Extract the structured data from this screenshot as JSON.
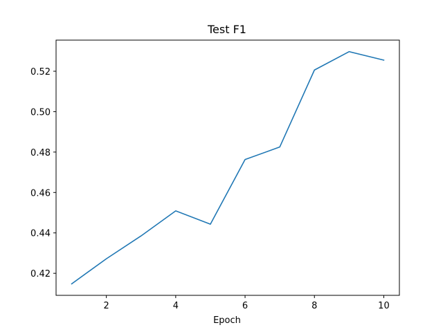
{
  "chart_data": {
    "type": "line",
    "title": "Test F1",
    "xlabel": "Epoch",
    "ylabel": "",
    "x": [
      1,
      2,
      3,
      4,
      5,
      6,
      7,
      8,
      9,
      10
    ],
    "series": [
      {
        "values": [
          0.4148,
          0.4272,
          0.4385,
          0.4509,
          0.4443,
          0.4763,
          0.4825,
          0.5206,
          0.5297,
          0.5255
        ],
        "color": "#1f77b4"
      }
    ],
    "xlim": [
      0.55,
      10.45
    ],
    "ylim": [
      0.4091,
      0.5354
    ],
    "xticks": [
      2,
      4,
      6,
      8,
      10
    ],
    "yticks": [
      0.42,
      0.44,
      0.46,
      0.48,
      0.5,
      0.52
    ],
    "ytick_labels": [
      "0.42",
      "0.44",
      "0.46",
      "0.48",
      "0.50",
      "0.52"
    ],
    "grid": false,
    "legend": false
  }
}
